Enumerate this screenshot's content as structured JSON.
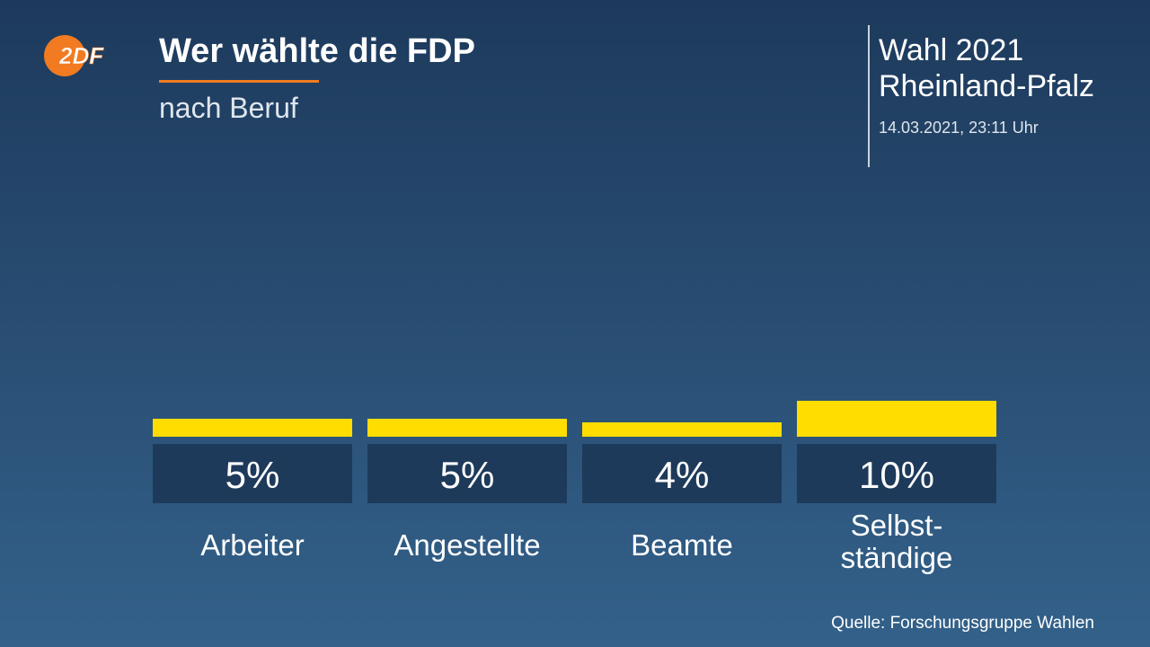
{
  "header": {
    "logo_text": "2DF",
    "title": "Wer wählte die FDP",
    "subtitle": "nach Beruf",
    "election_line1": "Wahl 2021",
    "election_line2": "Rheinland-Pfalz",
    "timestamp": "14.03.2021, 23:11 Uhr"
  },
  "colors": {
    "bar": "#ffdd00",
    "label_box": "#1e3a5a",
    "accent": "#f27b21"
  },
  "chart_data": {
    "type": "bar",
    "title": "Wer wählte die FDP",
    "subtitle": "nach Beruf",
    "categories": [
      [
        "Arbeiter"
      ],
      [
        "Angestellte"
      ],
      [
        "Beamte"
      ],
      [
        "Selbst-",
        "ständige"
      ]
    ],
    "values": [
      5,
      5,
      4,
      10
    ],
    "value_labels": [
      "5%",
      "5%",
      "4%",
      "10%"
    ],
    "unit": "%",
    "grid": false,
    "legend": "none"
  },
  "footer": {
    "source": "Quelle: Forschungsgruppe Wahlen"
  }
}
